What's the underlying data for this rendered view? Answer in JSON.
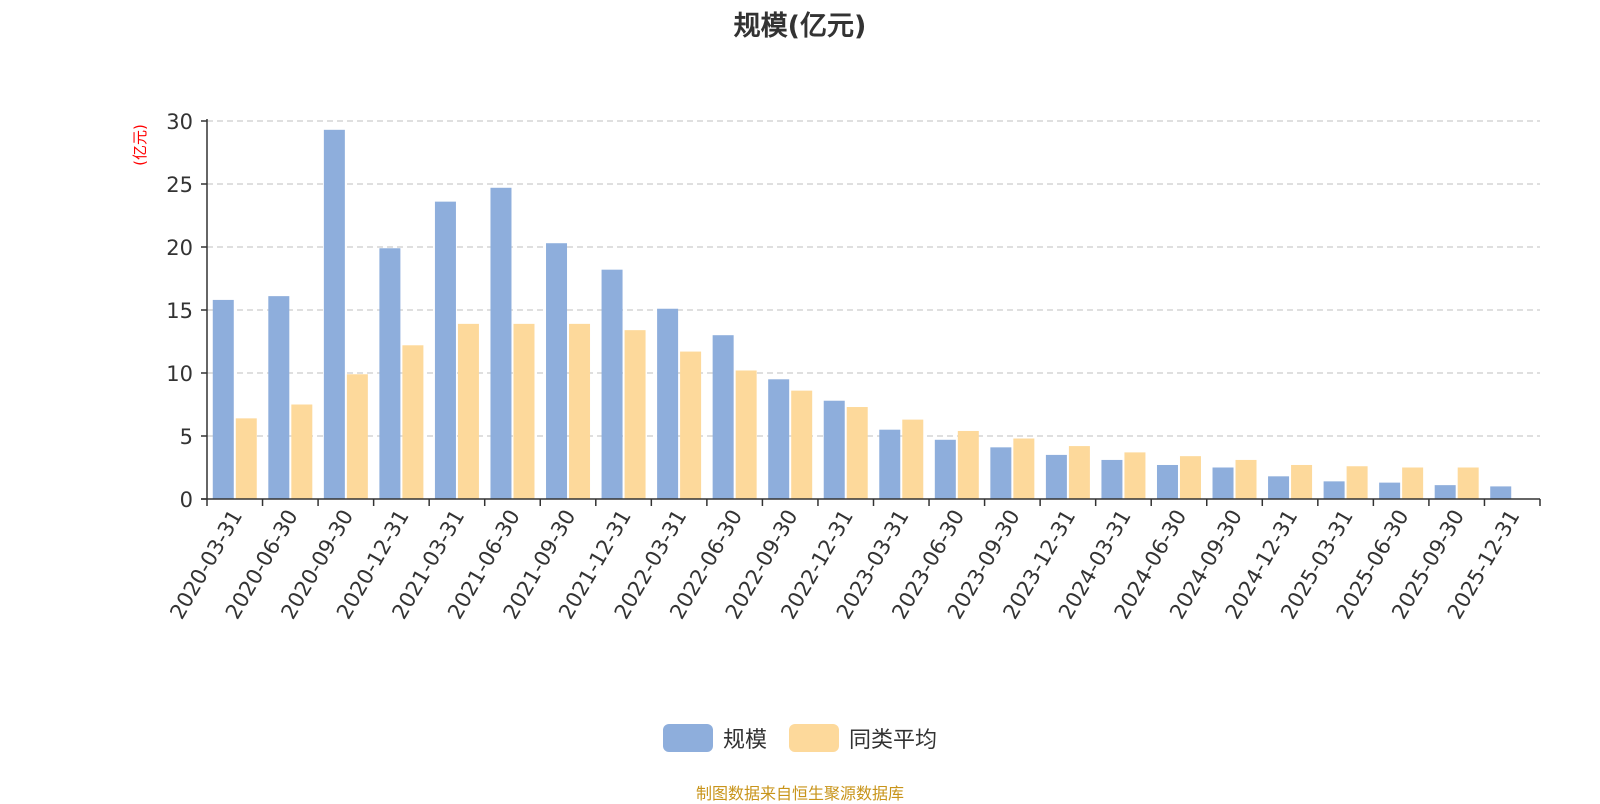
{
  "chart_data": {
    "type": "bar",
    "title": "规模(亿元)",
    "ylabel": "(亿元)",
    "ylim": [
      0,
      30
    ],
    "yticks": [
      0,
      5,
      10,
      15,
      20,
      25,
      30
    ],
    "grid": true,
    "legend_position": "bottom-center",
    "categories": [
      "2020-03-31",
      "2020-06-30",
      "2020-09-30",
      "2020-12-31",
      "2021-03-31",
      "2021-06-30",
      "2021-09-30",
      "2021-12-31",
      "2022-03-31",
      "2022-06-30",
      "2022-09-30",
      "2022-12-31",
      "2023-03-31",
      "2023-06-30",
      "2023-09-30",
      "2023-12-31",
      "2024-03-31",
      "2024-06-30",
      "2024-09-30",
      "2024-12-31",
      "2025-03-31",
      "2025-06-30",
      "2025-09-30",
      "2025-12-31"
    ],
    "series": [
      {
        "name": "规模",
        "color": "#8eaedc",
        "values": [
          15.8,
          16.1,
          29.3,
          19.9,
          23.6,
          24.7,
          20.3,
          18.2,
          15.1,
          13.0,
          9.5,
          7.8,
          5.5,
          4.7,
          4.1,
          3.5,
          3.1,
          2.7,
          2.5,
          1.8,
          1.4,
          1.3,
          1.1,
          1.0
        ]
      },
      {
        "name": "同类平均",
        "color": "#fdd99b",
        "values": [
          6.4,
          7.5,
          9.9,
          12.2,
          13.9,
          13.9,
          13.9,
          13.4,
          11.7,
          10.2,
          8.6,
          7.3,
          6.3,
          5.4,
          4.8,
          4.2,
          3.7,
          3.4,
          3.1,
          2.7,
          2.6,
          2.5,
          2.5,
          null
        ]
      }
    ]
  },
  "footer_note": "制图数据来自恒生聚源数据库",
  "colors": {
    "axis": "#333333",
    "grid": "#cccccc",
    "ylabel": "#ff0000",
    "footer": "#c8941a"
  }
}
